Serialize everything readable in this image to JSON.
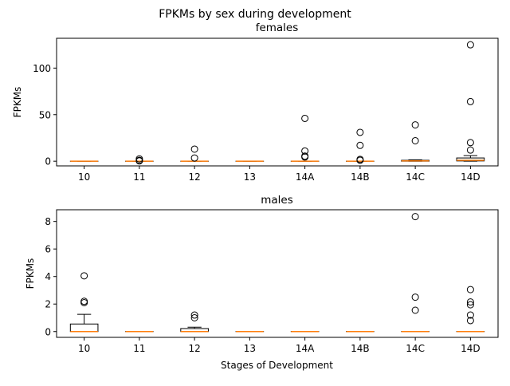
{
  "chart_data": {
    "suptitle": "FPKMs by sex during development",
    "categories": [
      "10",
      "11",
      "12",
      "13",
      "14A",
      "14B",
      "14C",
      "14D"
    ],
    "median_color": "#ff7f0e",
    "box_color": "#000000",
    "panels": [
      {
        "type": "box",
        "title": "females",
        "ylabel": "FPKMs",
        "xlabel": "",
        "ylim": [
          -5,
          132
        ],
        "yticks": [
          0,
          50,
          100
        ],
        "boxes": [
          {
            "category": "10",
            "q1": 0,
            "median": 0,
            "q3": 0,
            "whislo": 0,
            "whishi": 0,
            "fliers": []
          },
          {
            "category": "11",
            "q1": 0,
            "median": 0,
            "q3": 0,
            "whislo": 0,
            "whishi": 0,
            "fliers": [
              0.3,
              1.0,
              2.5
            ]
          },
          {
            "category": "12",
            "q1": 0,
            "median": 0,
            "q3": 0,
            "whislo": 0,
            "whishi": 0,
            "fliers": [
              3.5,
              13
            ]
          },
          {
            "category": "13",
            "q1": 0,
            "median": 0,
            "q3": 0,
            "whislo": 0,
            "whishi": 0,
            "fliers": []
          },
          {
            "category": "14A",
            "q1": 0,
            "median": 0,
            "q3": 0,
            "whislo": 0,
            "whishi": 0,
            "fliers": [
              4.5,
              5.5,
              11,
              46
            ]
          },
          {
            "category": "14B",
            "q1": 0,
            "median": 0,
            "q3": 0,
            "whislo": 0,
            "whishi": 0,
            "fliers": [
              1.0,
              2.0,
              17,
              31
            ]
          },
          {
            "category": "14C",
            "q1": 0,
            "median": 0.3,
            "q3": 1.0,
            "whislo": 0,
            "whishi": 1.5,
            "fliers": [
              22,
              39
            ]
          },
          {
            "category": "14D",
            "q1": 0.3,
            "median": 1.0,
            "q3": 3.5,
            "whislo": 0,
            "whishi": 6,
            "fliers": [
              12,
              20,
              64,
              125
            ]
          }
        ]
      },
      {
        "type": "box",
        "title": "males",
        "ylabel": "FPKMs",
        "xlabel": "Stages of Development",
        "ylim": [
          -0.42,
          8.85
        ],
        "yticks": [
          0,
          2,
          4,
          6,
          8
        ],
        "boxes": [
          {
            "category": "10",
            "q1": 0,
            "median": 0,
            "q3": 0.55,
            "whislo": 0,
            "whishi": 1.25,
            "fliers": [
              2.1,
              2.2,
              4.05
            ]
          },
          {
            "category": "11",
            "q1": 0,
            "median": 0,
            "q3": 0,
            "whislo": 0,
            "whishi": 0,
            "fliers": []
          },
          {
            "category": "12",
            "q1": 0,
            "median": 0,
            "q3": 0.22,
            "whislo": 0,
            "whishi": 0.32,
            "fliers": [
              1.0,
              1.2
            ]
          },
          {
            "category": "13",
            "q1": 0,
            "median": 0,
            "q3": 0,
            "whislo": 0,
            "whishi": 0,
            "fliers": []
          },
          {
            "category": "14A",
            "q1": 0,
            "median": 0,
            "q3": 0,
            "whislo": 0,
            "whishi": 0,
            "fliers": []
          },
          {
            "category": "14B",
            "q1": 0,
            "median": 0,
            "q3": 0,
            "whislo": 0,
            "whishi": 0,
            "fliers": []
          },
          {
            "category": "14C",
            "q1": 0,
            "median": 0,
            "q3": 0,
            "whislo": 0,
            "whishi": 0,
            "fliers": [
              1.55,
              2.5,
              8.35
            ]
          },
          {
            "category": "14D",
            "q1": 0,
            "median": 0,
            "q3": 0,
            "whislo": 0,
            "whishi": 0,
            "fliers": [
              0.8,
              1.2,
              1.95,
              2.15,
              3.05
            ]
          }
        ]
      }
    ]
  }
}
